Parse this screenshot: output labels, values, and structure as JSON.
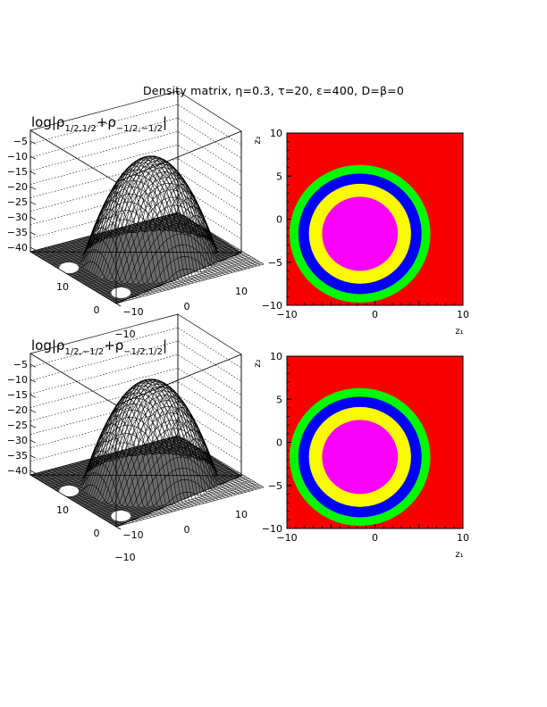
{
  "figure": {
    "title": "Density matrix, η=0.3, τ=20, ε=400, D=β=0"
  },
  "chart_data": [
    {
      "type": "surface",
      "panel": "top-left",
      "title_prefix": "log|ρ",
      "title_sub1": "1/2,1/2",
      "title_mid": "+ρ",
      "title_sub2": "−1/2,−1/2",
      "title_suffix": "|",
      "zlim": [
        -42,
        0
      ],
      "z_ticks": [
        "−5",
        "−10",
        "−15",
        "−20",
        "−25",
        "−30",
        "−35",
        "−40"
      ],
      "x_ticks": [
        "−10",
        "0",
        "10"
      ],
      "y_ticks": [
        "10",
        "0",
        "−10"
      ],
      "peak_value": -7.5,
      "floor_value": -42,
      "peak_center": [
        -2,
        -2
      ]
    },
    {
      "type": "heatmap",
      "panel": "top-right",
      "xlabel": "z₁",
      "ylabel": "z₂",
      "xlim": [
        -10,
        10
      ],
      "ylim": [
        -10,
        10
      ],
      "x_ticks": [
        "−10",
        "0",
        "10"
      ],
      "y_ticks": [
        "10",
        "5",
        "0",
        "−5",
        "−10"
      ],
      "center": [
        -1.7,
        -1.7
      ],
      "rings": [
        {
          "color": "#ff0000",
          "outer_radius": 99
        },
        {
          "color": "#00ff00",
          "outer_radius": 8.0
        },
        {
          "color": "#0000ff",
          "outer_radius": 7.0
        },
        {
          "color": "#ffff00",
          "outer_radius": 5.8
        },
        {
          "color": "#ff00ff",
          "outer_radius": 4.3
        }
      ]
    },
    {
      "type": "surface",
      "panel": "bottom-left",
      "title_prefix": "log|ρ",
      "title_sub1": "1/2,−1/2",
      "title_mid": "+ρ",
      "title_sub2": "−1/2,1/2",
      "title_suffix": "|",
      "zlim": [
        -42,
        0
      ],
      "z_ticks": [
        "−5",
        "−10",
        "−15",
        "−20",
        "−25",
        "−30",
        "−35",
        "−40"
      ],
      "x_ticks": [
        "−10",
        "0",
        "10"
      ],
      "y_ticks": [
        "10",
        "0",
        "−10"
      ],
      "peak_value": -7.5,
      "floor_value": -42,
      "peak_center": [
        -2,
        -2
      ]
    },
    {
      "type": "heatmap",
      "panel": "bottom-right",
      "xlabel": "z₁",
      "ylabel": "z₂",
      "xlim": [
        -10,
        10
      ],
      "ylim": [
        -10,
        10
      ],
      "x_ticks": [
        "−10",
        "0",
        "10"
      ],
      "y_ticks": [
        "10",
        "5",
        "0",
        "−5",
        "−10"
      ],
      "center": [
        -1.7,
        -1.7
      ],
      "rings": [
        {
          "color": "#ff0000",
          "outer_radius": 99
        },
        {
          "color": "#00ff00",
          "outer_radius": 8.0
        },
        {
          "color": "#0000ff",
          "outer_radius": 7.0
        },
        {
          "color": "#ffff00",
          "outer_radius": 5.8
        },
        {
          "color": "#ff00ff",
          "outer_radius": 4.3
        }
      ]
    }
  ]
}
